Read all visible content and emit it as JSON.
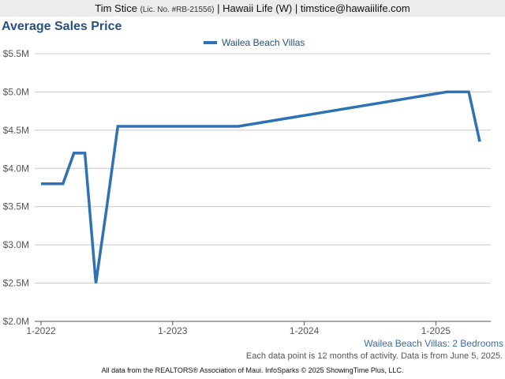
{
  "header": {
    "agent_name": "Tim Stice",
    "license": "(Lic. No. #RB-21556)",
    "rest": "| Hawaii Life (W) | timstice@hawaiilife.com"
  },
  "chart_data": {
    "type": "line",
    "title": "Average Sales Price",
    "subtitle": "Wailea Beach Villas: 2 Bedrooms",
    "note": "Each data point is 12 months of activity. Data is from June 5, 2025.",
    "ylim": [
      2.0,
      5.5
    ],
    "yticks": [
      2.0,
      2.5,
      3.0,
      3.5,
      4.0,
      4.5,
      5.0,
      5.5
    ],
    "ytick_labels": [
      "$2.0M",
      "$2.5M",
      "$3.0M",
      "$3.5M",
      "$4.0M",
      "$4.5M",
      "$5.0M",
      "$5.5M"
    ],
    "xlim": [
      "2022-01",
      "2025-06"
    ],
    "xticks": [
      "2022-01",
      "2023-01",
      "2024-01",
      "2025-01"
    ],
    "xtick_labels": [
      "1-2022",
      "1-2023",
      "1-2024",
      "1-2025"
    ],
    "legend_position": "top-center",
    "grid": true,
    "color": "#2f72b4",
    "series": [
      {
        "name": "Wailea Beach Villas",
        "x": [
          "2022-01",
          "2022-02",
          "2022-03",
          "2022-04",
          "2022-05",
          "2022-06",
          "2022-07",
          "2022-08",
          "2023-07",
          "2025-02",
          "2025-03",
          "2025-04",
          "2025-05"
        ],
        "values": [
          3.8,
          3.8,
          3.8,
          4.2,
          4.2,
          2.5,
          3.5,
          4.55,
          4.55,
          5.0,
          5.0,
          5.0,
          4.35
        ]
      }
    ]
  },
  "footer": "All data from the REALTORS® Association of Maui. InfoSparks © 2025 ShowingTime Plus, LLC."
}
